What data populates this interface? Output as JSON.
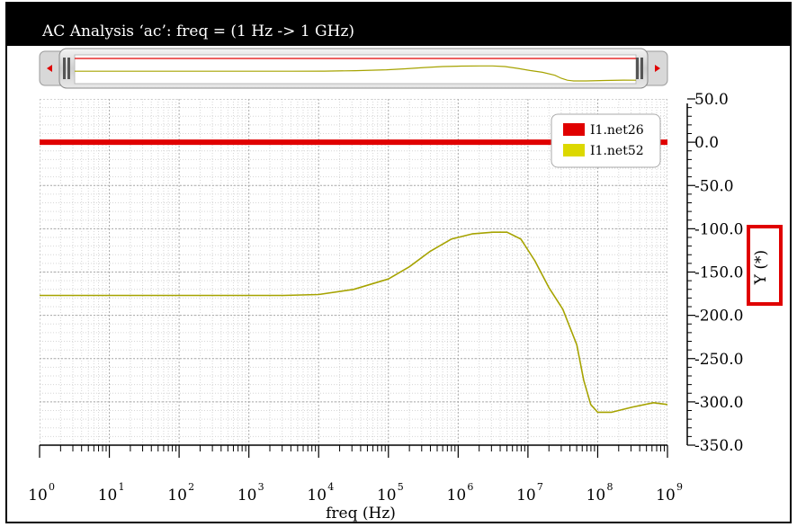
{
  "window": {
    "title": "AC Analysis ‘ac’: freq = (1 Hz -> 1 GHz)"
  },
  "chart_data": {
    "type": "line",
    "title": "AC Analysis ‘ac’: freq = (1 Hz -> 1 GHz)",
    "xlabel": "freq (Hz)",
    "ylabel": "Y (*)",
    "xscale": "log",
    "xlim": [
      1,
      1000000000
    ],
    "ylim": [
      -350,
      50
    ],
    "x_tick_base": "10",
    "x_tick_exponents": [
      "0",
      "1",
      "2",
      "3",
      "4",
      "5",
      "6",
      "7",
      "8",
      "9"
    ],
    "y_ticks": [
      "50.0",
      "0.0",
      "-50.0",
      "-100.0",
      "-150.0",
      "-200.0",
      "-250.0",
      "-300.0",
      "-350.0"
    ],
    "grid": true,
    "legend_position": "top-right",
    "series": [
      {
        "name": "I1.net26",
        "color": "#e00000",
        "x_exp": [
          0,
          9
        ],
        "y": [
          0,
          0
        ]
      },
      {
        "name": "I1.net52",
        "color": "#a6a300",
        "x_exp": [
          0,
          1,
          2,
          3,
          3.5,
          4,
          4.5,
          5,
          5.3,
          5.6,
          5.9,
          6.2,
          6.5,
          6.7,
          6.9,
          7.1,
          7.3,
          7.5,
          7.7,
          7.8,
          7.9,
          8.0,
          8.2,
          8.5,
          8.8,
          9.0
        ],
        "y": [
          -177,
          -177,
          -177,
          -177,
          -177,
          -176,
          -170,
          -158,
          -144,
          -126,
          -112,
          -106,
          -104,
          -104,
          -112,
          -137,
          -168,
          -193,
          -234,
          -275,
          -303,
          -312,
          -312,
          -306,
          -301,
          -303
        ]
      }
    ]
  }
}
